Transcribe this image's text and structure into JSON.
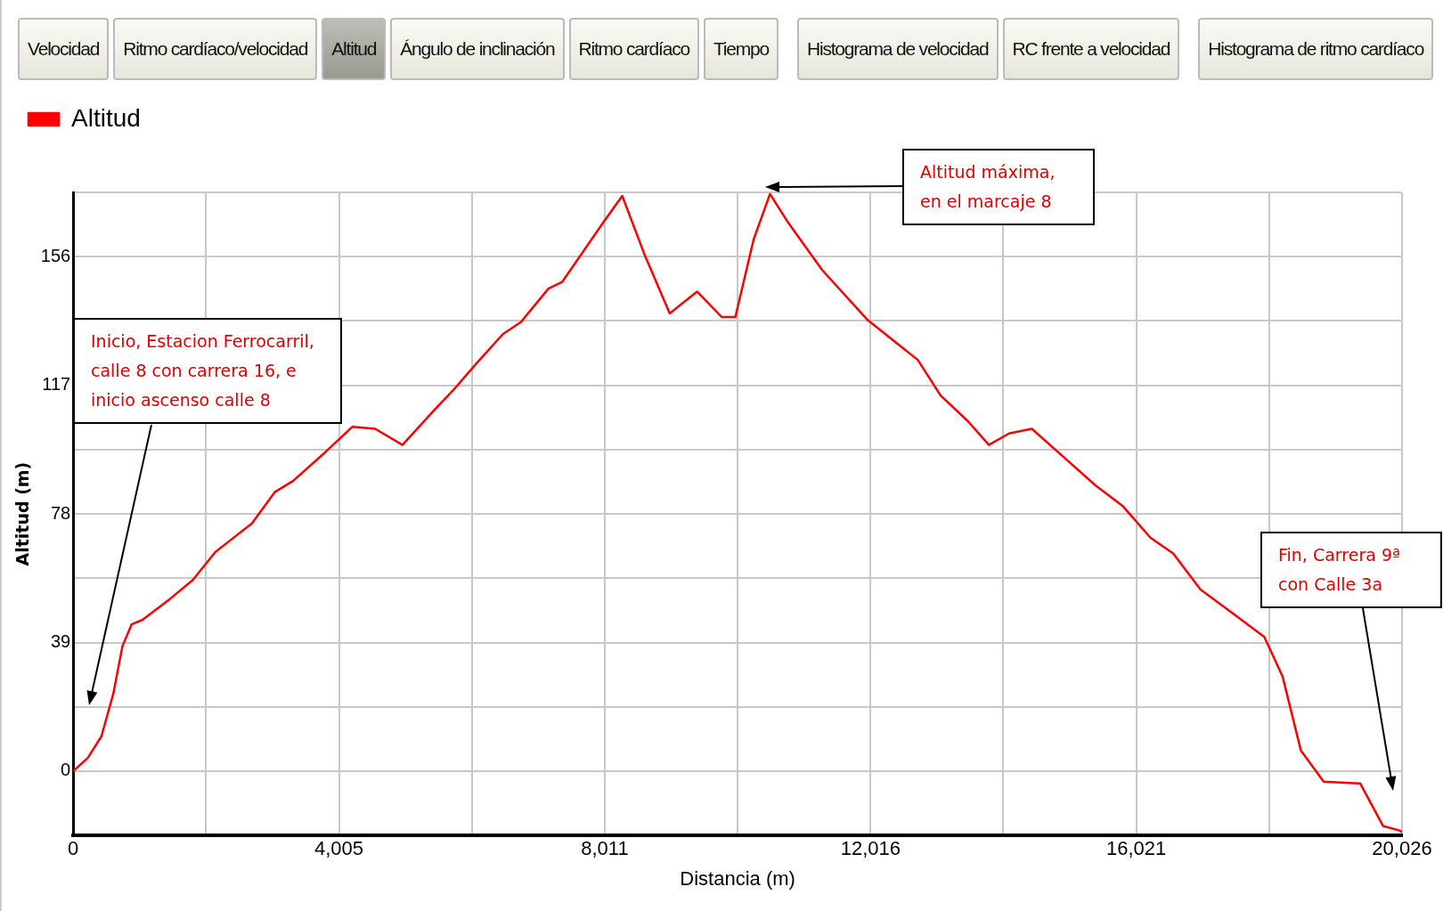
{
  "chart_data": {
    "type": "line",
    "xlabel": "Distancia (m)",
    "ylabel": "Altitud (m)",
    "x": [
      0,
      220,
      426,
      605,
      742,
      880,
      1045,
      1457,
      1800,
      2144,
      2694,
      3037,
      3312,
      3793,
      4206,
      4550,
      4962,
      5443,
      5718,
      6062,
      6475,
      6749,
      7162,
      7368,
      7986,
      8275,
      8605,
      8990,
      9402,
      9773,
      9979,
      10254,
      10501,
      10776,
      11285,
      11972,
      12728,
      13072,
      13484,
      13800,
      14103,
      14447,
      14928,
      15409,
      15821,
      16233,
      16577,
      16989,
      17470,
      17951,
      18226,
      18501,
      18845,
      19395,
      19739,
      19987,
      20026
    ],
    "series": [
      {
        "name": "Altitud",
        "color": "#ff0000",
        "values": [
          0,
          4,
          10.6,
          23.5,
          37.9,
          44.5,
          45.9,
          52.2,
          57.9,
          66.5,
          75.1,
          84.6,
          88,
          96.6,
          104.4,
          103.8,
          98.9,
          109.5,
          115.3,
          123.3,
          132.5,
          136.2,
          146.3,
          148.3,
          166.3,
          174.4,
          156.9,
          138.8,
          145.4,
          137.7,
          137.7,
          161.2,
          175,
          166.3,
          152,
          136.8,
          124.7,
          113.9,
          106.1,
          98.9,
          102.4,
          103.8,
          95.2,
          86.6,
          80.3,
          70.8,
          66,
          55.1,
          47.9,
          40.7,
          28.7,
          6.3,
          -3.2,
          -3.7,
          -16.6,
          -18,
          -18.5
        ]
      }
    ],
    "xlim": [
      0,
      20026
    ],
    "xticks": [
      0,
      {
        "value": 2002.6,
        "label": null
      },
      {
        "value": 4005,
        "label": "4,005"
      },
      {
        "value": 6008,
        "label": null
      },
      {
        "value": 8011,
        "label": "8,011"
      },
      {
        "value": 10013.5,
        "label": null
      },
      {
        "value": 12016,
        "label": "12,016"
      },
      {
        "value": 14018.5,
        "label": null
      },
      {
        "value": 16021,
        "label": "16,021"
      },
      {
        "value": 18023.5,
        "label": null
      },
      {
        "value": 20026,
        "label": "20,026"
      }
    ],
    "ylim": [
      -19.5,
      175.5
    ],
    "yticks": [
      {
        "value": -19.5,
        "label": null
      },
      0,
      {
        "value": 19.5,
        "label": null
      },
      39,
      {
        "value": 58.5,
        "label": null
      },
      78,
      {
        "value": 97.5,
        "label": null
      },
      117,
      {
        "value": 136.5,
        "label": null
      },
      156,
      {
        "value": 175.5,
        "label": null
      }
    ],
    "grid": true,
    "legend": "top left",
    "marker": "none",
    "line_style": "solid",
    "annotations": [
      "Velocidad",
      "Ritmo cardíaco/velocidad",
      "Altitud",
      "Ángulo de inclinación",
      "Ritmo cardíaco",
      "Tiempo",
      "Histograma de velocidad",
      "RC frente a velocidad",
      "Histograma de ritmo cardíaco",
      "Inicio, Estacion Ferrocarril, calle 8 con carrera 16, e inicio ascenso calle 8",
      "Altitud máxima, en el marcaje 8",
      "Fin, Carrera  9ª con Calle 3a"
    ]
  }
}
